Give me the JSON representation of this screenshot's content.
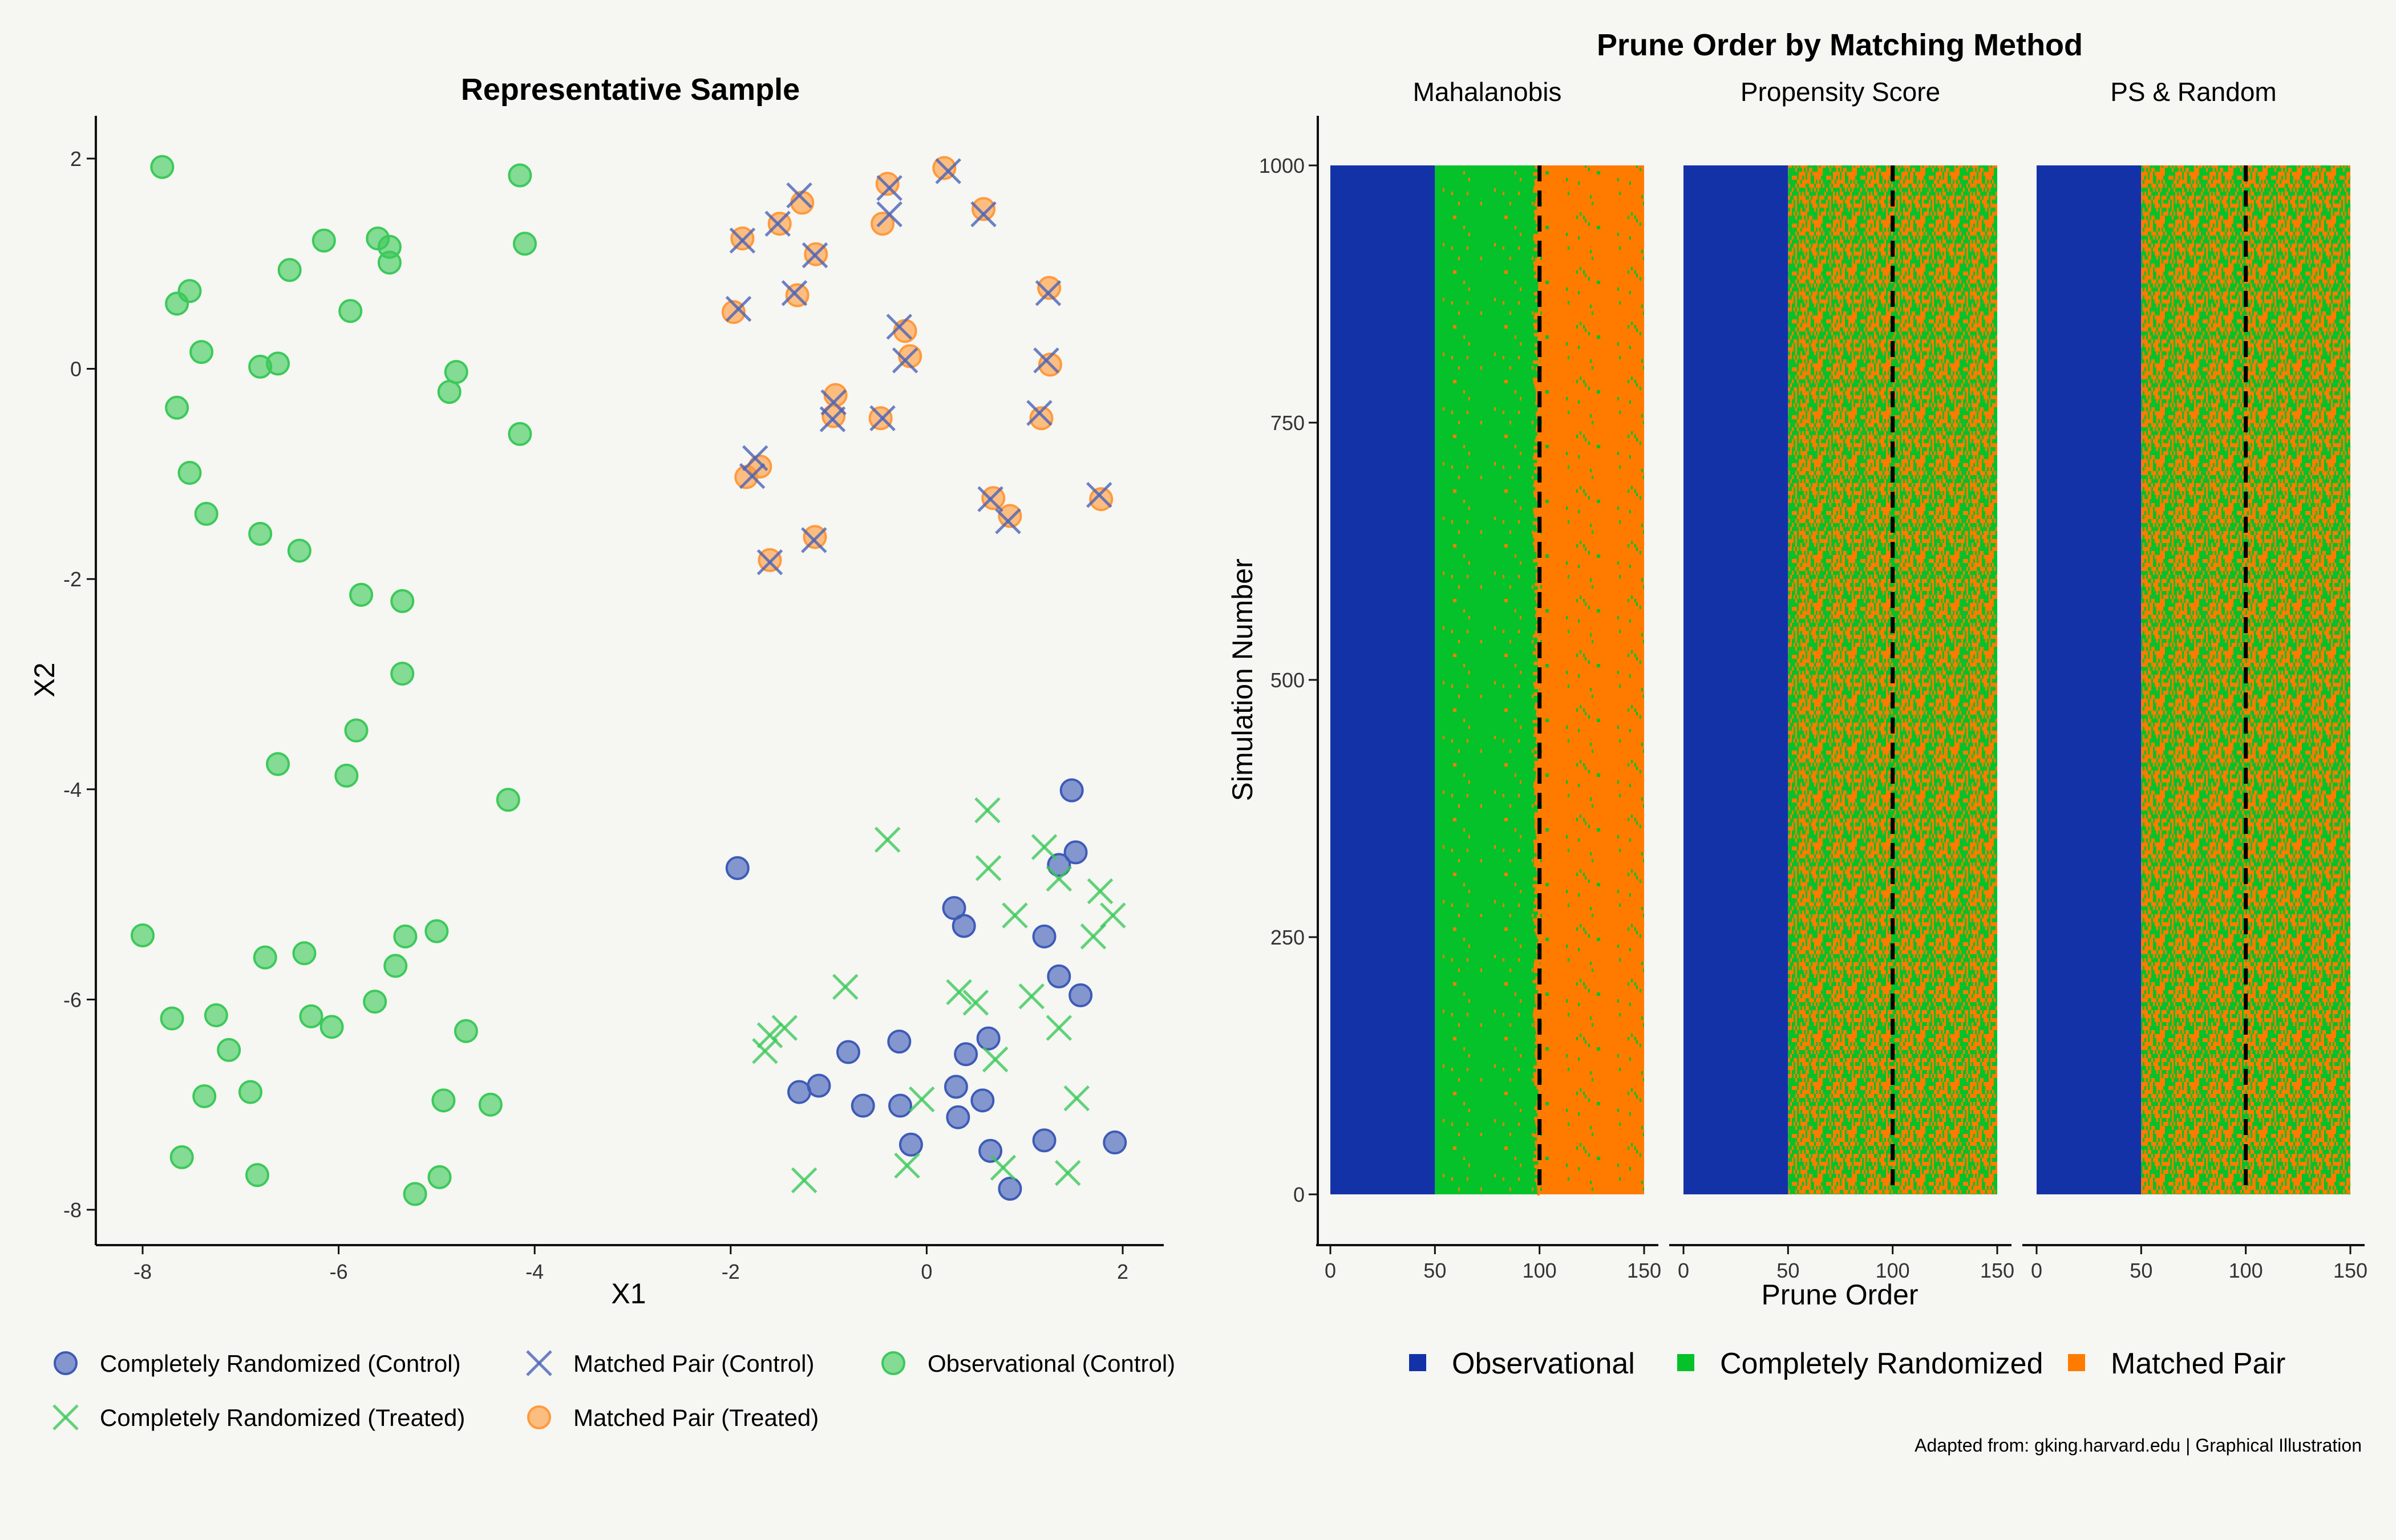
{
  "colors": {
    "background": "#f6f6f2",
    "observational": "#05c12a",
    "completely_randomized": "#1432a8",
    "matched_pair": "#ff7b00",
    "scatter_blue": "#3d5bb8",
    "scatter_green": "#3cc95a",
    "scatter_orange": "#ff9a3c",
    "scatter_blue_x": "#4a63b8"
  },
  "caption": "Adapted from: gking.harvard.edu | Graphical Illustration",
  "left_legend": [
    {
      "label": "Completely Randomized (Control)",
      "shape": "circle",
      "color": "#3d5bb8"
    },
    {
      "label": "Matched Pair (Control)",
      "shape": "x",
      "color": "#4a63b8"
    },
    {
      "label": "Observational (Control)",
      "shape": "circle",
      "color": "#3cc95a"
    },
    {
      "label": "Completely Randomized (Treated)",
      "shape": "x",
      "color": "#3cc95a"
    },
    {
      "label": "Matched Pair (Treated)",
      "shape": "circle",
      "color": "#ff9a3c"
    }
  ],
  "right_legend": [
    {
      "label": "Observational",
      "color": "#1432a8"
    },
    {
      "label": "Completely Randomized",
      "color": "#05c12a"
    },
    {
      "label": "Matched Pair",
      "color": "#ff7b00"
    }
  ],
  "chart_data": [
    {
      "type": "scatter",
      "title": "Representative Sample",
      "xlabel": "X1",
      "ylabel": "X2",
      "xlim": [
        -8.5,
        2.4
      ],
      "ylim": [
        -8.3,
        2.4
      ],
      "xticks": [
        -8,
        -6,
        -4,
        -2,
        0,
        2
      ],
      "yticks": [
        -8,
        -6,
        -4,
        -2,
        0,
        2
      ],
      "legend": "bottom",
      "series": [
        {
          "name": "Observational (Control)",
          "shape": "circle",
          "color": "#3cc95a",
          "points": [
            [
              -7.8,
              1.92
            ],
            [
              -7.65,
              0.62
            ],
            [
              -7.52,
              0.74
            ],
            [
              -7.4,
              0.16
            ],
            [
              -7.65,
              -0.37
            ],
            [
              -6.8,
              0.02
            ],
            [
              -6.62,
              0.05
            ],
            [
              -6.5,
              0.94
            ],
            [
              -6.15,
              1.22
            ],
            [
              -5.88,
              0.55
            ],
            [
              -5.6,
              1.24
            ],
            [
              -5.48,
              1.16
            ],
            [
              -5.48,
              1.01
            ],
            [
              -4.8,
              -0.03
            ],
            [
              -4.87,
              -0.22
            ],
            [
              -4.15,
              1.84
            ],
            [
              -4.1,
              1.19
            ],
            [
              -4.15,
              -0.62
            ],
            [
              -7.52,
              -0.99
            ],
            [
              -7.35,
              -1.38
            ],
            [
              -6.8,
              -1.57
            ],
            [
              -6.4,
              -1.73
            ],
            [
              -5.77,
              -2.15
            ],
            [
              -5.35,
              -2.21
            ],
            [
              -5.35,
              -2.9
            ],
            [
              -5.82,
              -3.44
            ],
            [
              -6.62,
              -3.76
            ],
            [
              -5.92,
              -3.87
            ],
            [
              -4.27,
              -4.1
            ],
            [
              -8.0,
              -5.39
            ],
            [
              -7.7,
              -6.18
            ],
            [
              -7.25,
              -6.15
            ],
            [
              -6.75,
              -5.6
            ],
            [
              -6.35,
              -5.56
            ],
            [
              -6.28,
              -6.16
            ],
            [
              -6.07,
              -6.26
            ],
            [
              -5.63,
              -6.02
            ],
            [
              -5.42,
              -5.68
            ],
            [
              -5.32,
              -5.4
            ],
            [
              -5.0,
              -5.35
            ],
            [
              -4.7,
              -6.3
            ],
            [
              -7.12,
              -6.48
            ],
            [
              -7.37,
              -6.92
            ],
            [
              -6.9,
              -6.88
            ],
            [
              -6.83,
              -7.67
            ],
            [
              -7.6,
              -7.5
            ],
            [
              -4.93,
              -6.96
            ],
            [
              -4.45,
              -7.0
            ],
            [
              -5.22,
              -7.85
            ],
            [
              -4.97,
              -7.69
            ]
          ]
        },
        {
          "name": "Matched Pair (Treated)",
          "shape": "circle",
          "color": "#ff9a3c",
          "points": [
            [
              -1.88,
              1.24
            ],
            [
              -1.5,
              1.38
            ],
            [
              -1.27,
              1.58
            ],
            [
              -1.13,
              1.09
            ],
            [
              -1.97,
              0.54
            ],
            [
              -1.32,
              0.7
            ],
            [
              -0.45,
              1.38
            ],
            [
              -0.4,
              1.76
            ],
            [
              0.18,
              1.91
            ],
            [
              0.58,
              1.52
            ],
            [
              1.25,
              0.77
            ],
            [
              -0.22,
              0.36
            ],
            [
              -0.17,
              0.12
            ],
            [
              -0.93,
              -0.25
            ],
            [
              -0.95,
              -0.45
            ],
            [
              -0.47,
              -0.47
            ],
            [
              1.26,
              0.04
            ],
            [
              1.17,
              -0.47
            ],
            [
              -1.84,
              -1.03
            ],
            [
              -1.7,
              -0.93
            ],
            [
              -1.14,
              -1.6
            ],
            [
              -1.6,
              -1.82
            ],
            [
              0.68,
              -1.23
            ],
            [
              0.85,
              -1.4
            ],
            [
              1.78,
              -1.24
            ]
          ]
        },
        {
          "name": "Matched Pair (Control)",
          "shape": "x",
          "color": "#4a63b8",
          "points": [
            [
              -1.88,
              1.22
            ],
            [
              -1.52,
              1.38
            ],
            [
              -1.3,
              1.65
            ],
            [
              -1.14,
              1.08
            ],
            [
              -1.92,
              0.57
            ],
            [
              -1.35,
              0.72
            ],
            [
              -0.38,
              1.47
            ],
            [
              -0.38,
              1.72
            ],
            [
              0.22,
              1.88
            ],
            [
              0.58,
              1.47
            ],
            [
              1.24,
              0.72
            ],
            [
              -0.28,
              0.4
            ],
            [
              -0.22,
              0.08
            ],
            [
              -0.95,
              -0.32
            ],
            [
              -0.96,
              -0.48
            ],
            [
              -0.45,
              -0.47
            ],
            [
              1.22,
              0.08
            ],
            [
              1.15,
              -0.42
            ],
            [
              -1.75,
              -0.85
            ],
            [
              -1.78,
              -1.02
            ],
            [
              -1.15,
              -1.63
            ],
            [
              -1.6,
              -1.84
            ],
            [
              0.65,
              -1.24
            ],
            [
              0.83,
              -1.45
            ],
            [
              1.76,
              -1.2
            ]
          ]
        },
        {
          "name": "Completely Randomized (Control)",
          "shape": "circle",
          "color": "#3d5bb8",
          "points": [
            [
              -1.93,
              -4.75
            ],
            [
              1.48,
              -4.01
            ],
            [
              1.52,
              -4.6
            ],
            [
              1.35,
              -4.72
            ],
            [
              0.28,
              -5.13
            ],
            [
              0.38,
              -5.3
            ],
            [
              1.2,
              -5.4
            ],
            [
              1.35,
              -5.78
            ],
            [
              1.57,
              -5.96
            ],
            [
              0.63,
              -6.37
            ],
            [
              0.4,
              -6.52
            ],
            [
              -0.28,
              -6.4
            ],
            [
              -0.8,
              -6.5
            ],
            [
              -1.1,
              -6.82
            ],
            [
              -1.3,
              -6.88
            ],
            [
              -0.65,
              -7.01
            ],
            [
              -0.27,
              -7.01
            ],
            [
              0.3,
              -6.83
            ],
            [
              0.32,
              -7.12
            ],
            [
              0.57,
              -6.96
            ],
            [
              -0.16,
              -7.38
            ],
            [
              0.65,
              -7.44
            ],
            [
              1.2,
              -7.34
            ],
            [
              0.85,
              -7.8
            ],
            [
              1.92,
              -7.36
            ]
          ]
        },
        {
          "name": "Completely Randomized (Treated)",
          "shape": "x",
          "color": "#3cc95a",
          "points": [
            [
              0.62,
              -4.2
            ],
            [
              -0.4,
              -4.48
            ],
            [
              0.63,
              -4.75
            ],
            [
              1.2,
              -4.55
            ],
            [
              1.35,
              -4.85
            ],
            [
              1.77,
              -4.97
            ],
            [
              1.9,
              -5.2
            ],
            [
              1.7,
              -5.4
            ],
            [
              0.9,
              -5.2
            ],
            [
              -0.83,
              -5.88
            ],
            [
              0.33,
              -5.93
            ],
            [
              0.5,
              -6.03
            ],
            [
              1.07,
              -5.97
            ],
            [
              1.35,
              -6.27
            ],
            [
              0.7,
              -6.57
            ],
            [
              -1.45,
              -6.27
            ],
            [
              -1.6,
              -6.34
            ],
            [
              -1.65,
              -6.49
            ],
            [
              -0.05,
              -6.95
            ],
            [
              -0.2,
              -7.58
            ],
            [
              0.78,
              -7.6
            ],
            [
              1.44,
              -7.65
            ],
            [
              -1.25,
              -7.72
            ],
            [
              1.53,
              -6.94
            ]
          ]
        }
      ]
    },
    {
      "type": "heatmap",
      "title": "Prune Order by Matching Method",
      "xlabel": "Prune Order",
      "ylabel": "Simulation Number",
      "xlim": [
        0,
        150
      ],
      "ylim": [
        0,
        1000
      ],
      "xticks": [
        0,
        50,
        100,
        150
      ],
      "yticks": [
        0,
        250,
        500,
        750,
        1000
      ],
      "reference_line_x": 100,
      "legend": "bottom",
      "categories": [
        "Observational",
        "Completely Randomized",
        "Matched Pair"
      ],
      "panels": [
        {
          "name": "Mahalanobis",
          "blocks": [
            {
              "from": 0,
              "to": 50,
              "category": "Observational"
            },
            {
              "from": 50,
              "to": 100,
              "category": "Completely Randomized",
              "mix_matched_pair": 0.02
            },
            {
              "from": 100,
              "to": 150,
              "category": "Matched Pair",
              "mix_completely_randomized": 0.02
            }
          ]
        },
        {
          "name": "Propensity Score",
          "blocks": [
            {
              "from": 0,
              "to": 50,
              "category": "Observational"
            },
            {
              "from": 50,
              "to": 150,
              "category": "mixed",
              "share_matched_pair": 0.5
            }
          ]
        },
        {
          "name": "PS & Random",
          "blocks": [
            {
              "from": 0,
              "to": 50,
              "category": "Observational"
            },
            {
              "from": 50,
              "to": 150,
              "category": "mixed",
              "share_matched_pair": 0.5
            }
          ]
        }
      ]
    }
  ]
}
